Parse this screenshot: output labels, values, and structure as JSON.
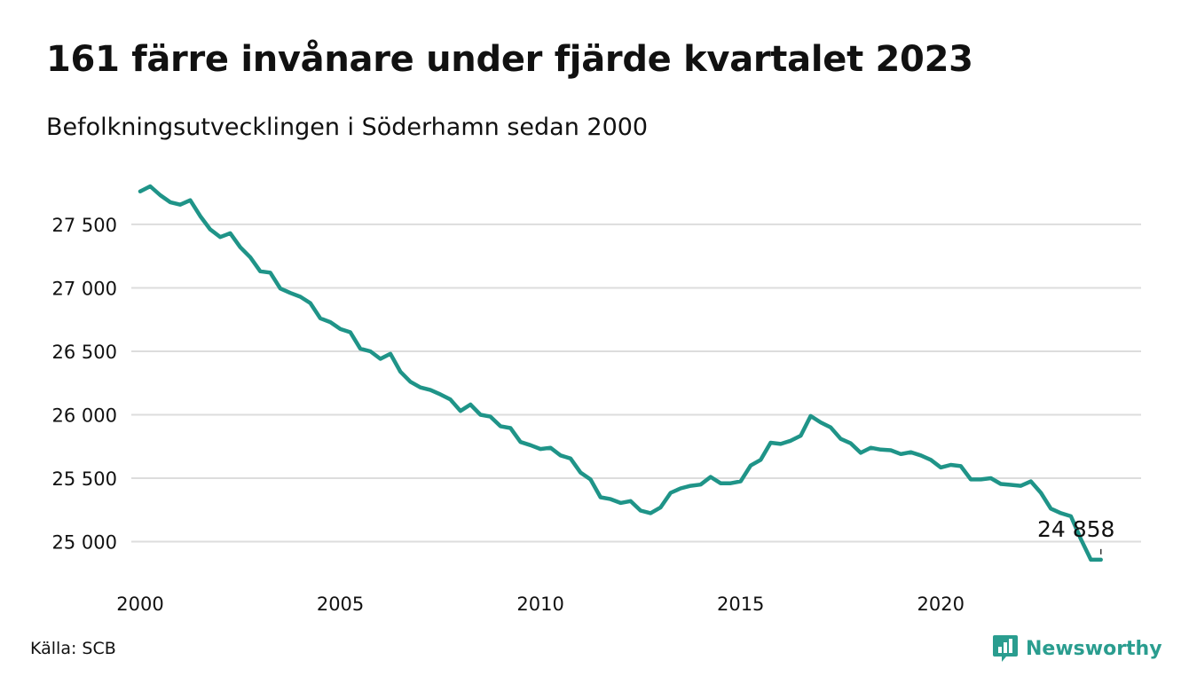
{
  "title": "161 färre invånare under fjärde kvartalet 2023",
  "subtitle": "Befolkningsutvecklingen i Söderhamn sedan 2000",
  "source": "Källa: SCB",
  "brand": {
    "name": "Newsworthy",
    "icon": "newsworthy-logo-icon"
  },
  "colors": {
    "line": "#1f9488",
    "grid": "#dddddd",
    "brand": "#2a9d8f",
    "text": "#111111"
  },
  "chart_data": {
    "type": "line",
    "title": "161 färre invånare under fjärde kvartalet 2023",
    "xlabel": "",
    "ylabel": "",
    "xlim": [
      2000.0,
      2024.25
    ],
    "ylim": [
      24850,
      27800
    ],
    "grid": true,
    "xticks": [
      {
        "value": 2000,
        "label": "2000"
      },
      {
        "value": 2005,
        "label": "2005"
      },
      {
        "value": 2010,
        "label": "2010"
      },
      {
        "value": 2015,
        "label": "2015"
      },
      {
        "value": 2020,
        "label": "2020"
      }
    ],
    "yticks": [
      {
        "value": 25000,
        "label": "25 000"
      },
      {
        "value": 25500,
        "label": "25 500"
      },
      {
        "value": 26000,
        "label": "26 000"
      },
      {
        "value": 26500,
        "label": "26 500"
      },
      {
        "value": 27000,
        "label": "27 000"
      },
      {
        "value": 27500,
        "label": "27 500"
      }
    ],
    "series": [
      {
        "x": [
          2000.0,
          2000.25,
          2000.5,
          2000.75,
          2001.0,
          2001.25,
          2001.5,
          2001.75,
          2002.0,
          2002.25,
          2002.5,
          2002.75,
          2003.0,
          2003.25,
          2003.5,
          2003.75,
          2004.0,
          2004.25,
          2004.5,
          2004.75,
          2005.0,
          2005.25,
          2005.5,
          2005.75,
          2006.0,
          2006.25,
          2006.5,
          2006.75,
          2007.0,
          2007.25,
          2007.5,
          2007.75,
          2008.0,
          2008.25,
          2008.5,
          2008.75,
          2009.0,
          2009.25,
          2009.5,
          2009.75,
          2010.0,
          2010.25,
          2010.5,
          2010.75,
          2011.0,
          2011.25,
          2011.5,
          2011.75,
          2012.0,
          2012.25,
          2012.5,
          2012.75,
          2013.0,
          2013.25,
          2013.5,
          2013.75,
          2014.0,
          2014.25,
          2014.5,
          2014.75,
          2015.0,
          2015.25,
          2015.5,
          2015.75,
          2016.0,
          2016.25,
          2016.5,
          2016.75,
          2017.0,
          2017.25,
          2017.5,
          2017.75,
          2018.0,
          2018.25,
          2018.5,
          2018.75,
          2019.0,
          2019.25,
          2019.5,
          2019.75,
          2020.0,
          2020.25,
          2020.5,
          2020.75,
          2021.0,
          2021.25,
          2021.5,
          2021.75,
          2022.0,
          2022.25,
          2022.5,
          2022.75,
          2023.0,
          2023.25,
          2023.5,
          2023.75,
          2024.0
        ],
        "values": [
          27760,
          27800,
          27730,
          27675,
          27655,
          27690,
          27565,
          27460,
          27400,
          27430,
          27320,
          27240,
          27130,
          27120,
          26995,
          26960,
          26930,
          26880,
          26760,
          26730,
          26675,
          26650,
          26520,
          26500,
          26440,
          26480,
          26340,
          26260,
          26215,
          26195,
          26160,
          26120,
          26030,
          26080,
          26000,
          25985,
          25910,
          25895,
          25785,
          25760,
          25730,
          25740,
          25680,
          25655,
          25545,
          25490,
          25350,
          25335,
          25305,
          25320,
          25245,
          25225,
          25270,
          25385,
          25420,
          25440,
          25450,
          25510,
          25460,
          25460,
          25475,
          25600,
          25645,
          25780,
          25770,
          25795,
          25835,
          25990,
          25940,
          25900,
          25810,
          25775,
          25700,
          25740,
          25725,
          25720,
          25690,
          25705,
          25680,
          25645,
          25585,
          25605,
          25595,
          25490,
          25490,
          25500,
          25455,
          25448,
          25440,
          25475,
          25385,
          25260,
          25225,
          25200,
          25019,
          24858,
          24858
        ]
      }
    ],
    "annotation": {
      "x": 2024.0,
      "value": 24858,
      "label": "24 858"
    }
  }
}
